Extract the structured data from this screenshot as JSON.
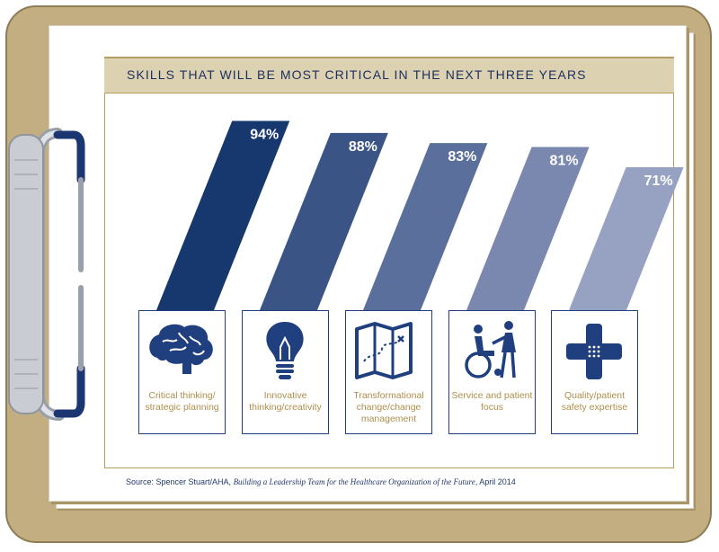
{
  "chart_data": {
    "type": "bar",
    "title": "SKILLS THAT WILL BE MOST CRITICAL IN THE NEXT THREE YEARS",
    "categories": [
      "Critical thinking/ strategic planning",
      "Innovative thinking/creativity",
      "Transformational change/change management",
      "Service and patient focus",
      "Quality/patient safety expertise"
    ],
    "values": [
      94,
      88,
      83,
      81,
      71
    ],
    "value_labels": [
      "94%",
      "88%",
      "83%",
      "81%",
      "71%"
    ],
    "colors": [
      "#17376f",
      "#3a5486",
      "#5b6f9c",
      "#7a88b0",
      "#97a2c3"
    ],
    "unit": "%",
    "ylim": [
      0,
      100
    ],
    "grid": false,
    "legend": "none"
  },
  "cards": [
    {
      "icon": "brain-icon",
      "label": "Critical thinking/ strategic planning"
    },
    {
      "icon": "lightbulb-icon",
      "label": "Innovative thinking/creativity"
    },
    {
      "icon": "map-icon",
      "label": "Transformational change/change management"
    },
    {
      "icon": "wheelchair-icon",
      "label": "Service and patient focus"
    },
    {
      "icon": "bandage-cross-icon",
      "label": "Quality/patient safety expertise"
    }
  ],
  "source": {
    "prefix": "Source: Spencer Stuart/AHA, ",
    "title": "Building a Leadership Team for the Healthcare Organization of the Future",
    "suffix": ", April 2014"
  },
  "colors": {
    "board": "#c3ae82",
    "navy": "#1c2e5e",
    "gold_text": "#ad8f4c",
    "banner": "#dcd1b0"
  }
}
